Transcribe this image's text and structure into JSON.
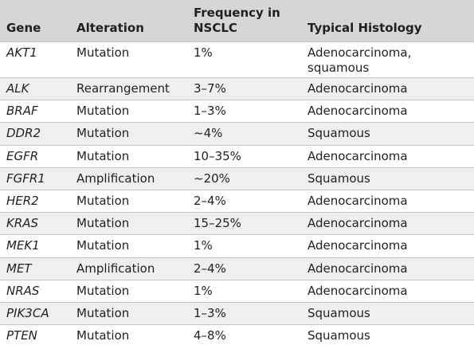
{
  "columns": {
    "gene": "Gene",
    "alteration": "Alteration",
    "frequency_line1": "Frequency in",
    "frequency_line2": "NSCLC",
    "histology": "Typical Histology"
  },
  "rows": [
    {
      "gene": "AKT1",
      "alteration": "Mutation",
      "frequency": "1%",
      "histology_line1": "Adenocarcinoma,",
      "histology_line2": "squamous"
    },
    {
      "gene": "ALK",
      "alteration": "Rearrangement",
      "frequency": "3–7%",
      "histology_line1": "Adenocarcinoma"
    },
    {
      "gene": "BRAF",
      "alteration": "Mutation",
      "frequency": "1–3%",
      "histology_line1": "Adenocarcinoma"
    },
    {
      "gene": "DDR2",
      "alteration": "Mutation",
      "frequency": "~4%",
      "histology_line1": "Squamous"
    },
    {
      "gene": "EGFR",
      "alteration": "Mutation",
      "frequency": "10–35%",
      "histology_line1": "Adenocarcinoma"
    },
    {
      "gene": "FGFR1",
      "alteration": "Amplification",
      "frequency": "~20%",
      "histology_line1": "Squamous"
    },
    {
      "gene": "HER2",
      "alteration": "Mutation",
      "frequency": "2–4%",
      "histology_line1": "Adenocarcinoma"
    },
    {
      "gene": "KRAS",
      "alteration": "Mutation",
      "frequency": "15–25%",
      "histology_line1": "Adenocarcinoma"
    },
    {
      "gene": "MEK1",
      "alteration": "Mutation",
      "frequency": "1%",
      "histology_line1": "Adenocarcinoma"
    },
    {
      "gene": "MET",
      "alteration": "Amplification",
      "frequency": "2–4%",
      "histology_line1": "Adenocarcinoma"
    },
    {
      "gene": "NRAS",
      "alteration": "Mutation",
      "frequency": "1%",
      "histology_line1": "Adenocarcinoma"
    },
    {
      "gene": "PIK3CA",
      "alteration": "Mutation",
      "frequency": "1–3%",
      "histology_line1": "Squamous"
    },
    {
      "gene": "PTEN",
      "alteration": "Mutation",
      "frequency": "4–8%",
      "histology_line1": "Squamous"
    }
  ]
}
